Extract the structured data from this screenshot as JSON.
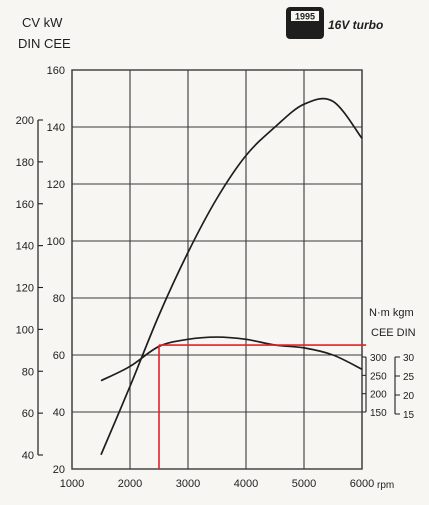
{
  "header": {
    "left_units_top": "CV  kW",
    "left_units_bottom": "DIN  CEE",
    "badge_year": "1995",
    "badge_model": "16V turbo"
  },
  "right_units": {
    "top": "N·m  kgm",
    "bottom": "CEE  DIN"
  },
  "chart_data": {
    "type": "line",
    "xlabel": "rpm",
    "x_ticks": [
      1000,
      2000,
      3000,
      4000,
      5000,
      6000
    ],
    "xlim": [
      1000,
      6000
    ],
    "grid": true,
    "axes": {
      "kw_cee": {
        "ticks": [
          20,
          40,
          60,
          80,
          100,
          120,
          140,
          160
        ],
        "range": [
          20,
          160
        ]
      },
      "cv_din": {
        "ticks": [
          40,
          60,
          80,
          100,
          120,
          140,
          160,
          180,
          200
        ]
      },
      "nm_cee": {
        "ticks": [
          150,
          200,
          250,
          300
        ]
      },
      "kgm_din": {
        "ticks": [
          15,
          20,
          25,
          30
        ]
      }
    },
    "series": [
      {
        "id": "power",
        "unit_axis": "kw_cee",
        "points": [
          [
            1500,
            25
          ],
          [
            2000,
            49
          ],
          [
            2500,
            74
          ],
          [
            3000,
            96
          ],
          [
            3500,
            115
          ],
          [
            4000,
            130
          ],
          [
            4500,
            140
          ],
          [
            5000,
            148
          ],
          [
            5500,
            149
          ],
          [
            6000,
            136
          ]
        ]
      },
      {
        "id": "torque",
        "unit_axis": "kw_cee",
        "points": [
          [
            1500,
            51
          ],
          [
            2000,
            56
          ],
          [
            2500,
            63
          ],
          [
            3000,
            65.5
          ],
          [
            3500,
            66.3
          ],
          [
            4000,
            65.5
          ],
          [
            4500,
            63.5
          ],
          [
            5000,
            62.5
          ],
          [
            5500,
            60
          ],
          [
            6000,
            55
          ]
        ]
      }
    ],
    "marker": {
      "rpm": 2500,
      "y_kw": 63.5,
      "color": "#e0212b"
    }
  },
  "colors": {
    "ink": "#1e1e1e",
    "grid": "#3a3a3a",
    "marker": "#e0212b",
    "paper": "#f7f6f2"
  }
}
